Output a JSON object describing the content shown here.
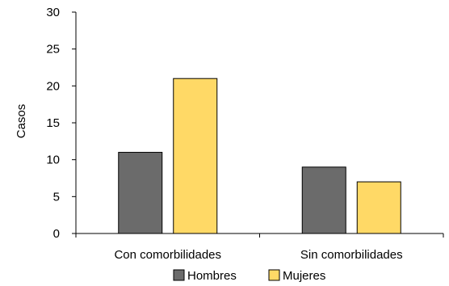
{
  "chart_data": {
    "type": "bar",
    "title": "",
    "xlabel": "",
    "ylabel": "Casos",
    "categories": [
      "Con comorbilidades",
      "Sin comorbilidades"
    ],
    "series": [
      {
        "name": "Hombres",
        "values": [
          11,
          9
        ],
        "color": "#6b6b6b"
      },
      {
        "name": "Mujeres",
        "values": [
          21,
          7
        ],
        "color": "#ffd966"
      }
    ],
    "ylim": [
      0,
      30
    ],
    "yticks": [
      0,
      5,
      10,
      15,
      20,
      25,
      30
    ],
    "grid": false,
    "legend": "bottom",
    "bar_stroke": "#000000"
  }
}
